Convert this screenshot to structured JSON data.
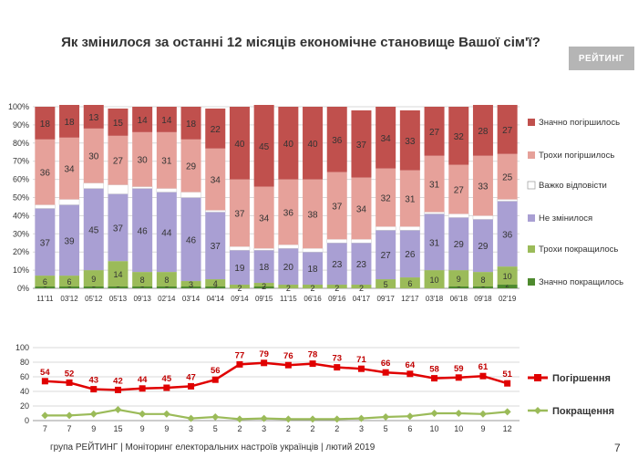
{
  "title": "Як змінилося за останні 12 місяців економічне становище Вашої сім'ї?",
  "logo_text": "РЕЙТИНГ",
  "footer": "група РЕЙТИНГ |  Моніторинг електоральних настроїв українців | лютий 2019",
  "page_number": "7",
  "chart_data": [
    {
      "type": "bar",
      "stacked": true,
      "categories": [
        "11'11",
        "03'12",
        "05'12",
        "05'13",
        "09'13",
        "02'14",
        "03'14",
        "04'14",
        "09'14",
        "09'15",
        "11'15",
        "06'16",
        "09'16",
        "04'17",
        "09'17",
        "12'17",
        "03'18",
        "06'18",
        "09'18",
        "02'19"
      ],
      "y_tick_labels": [
        "0%",
        "10%",
        "20%",
        "30%",
        "40%",
        "50%",
        "60%",
        "70%",
        "80%",
        "90%",
        "100%"
      ],
      "ylim": [
        0,
        100
      ],
      "grid": true,
      "legend_position": "right",
      "series": [
        {
          "name": "Значно покращилось",
          "color": "#4e8a2e",
          "values": [
            1,
            1,
            1,
            1,
            1,
            1,
            1,
            1,
            0,
            1,
            0,
            0,
            0,
            0,
            0,
            0,
            0,
            1,
            1,
            2
          ]
        },
        {
          "name": "Трохи покращилось",
          "color": "#9bbb59",
          "values": [
            6,
            6,
            9,
            14,
            8,
            8,
            3,
            4,
            2,
            2,
            2,
            2,
            2,
            2,
            5,
            6,
            10,
            9,
            8,
            10
          ]
        },
        {
          "name": "Не змінилося",
          "color": "#a99fd3",
          "values": [
            37,
            39,
            45,
            37,
            46,
            44,
            46,
            37,
            19,
            18,
            20,
            18,
            23,
            23,
            27,
            26,
            31,
            29,
            29,
            36
          ]
        },
        {
          "name": "Важко відповісти",
          "color": "#ffffff",
          "values": [
            2,
            3,
            3,
            5,
            1,
            2,
            3,
            1,
            2,
            1,
            2,
            2,
            2,
            2,
            2,
            2,
            1,
            2,
            2,
            1
          ]
        },
        {
          "name": "Трохи погіршилось",
          "color": "#e6a19a",
          "values": [
            36,
            34,
            30,
            27,
            30,
            31,
            29,
            34,
            37,
            34,
            36,
            38,
            37,
            34,
            32,
            31,
            31,
            27,
            33,
            25
          ]
        },
        {
          "name": "Значно погіршилось",
          "color": "#c0504d",
          "values": [
            18,
            18,
            13,
            15,
            14,
            14,
            18,
            22,
            40,
            45,
            40,
            40,
            36,
            37,
            34,
            33,
            27,
            32,
            28,
            27
          ]
        }
      ]
    },
    {
      "type": "line",
      "x": [
        "11'11",
        "03'12",
        "05'12",
        "05'13",
        "09'13",
        "02'14",
        "03'14",
        "04'14",
        "09'14",
        "09'15",
        "11'15",
        "06'16",
        "09'16",
        "04'17",
        "09'17",
        "12'17",
        "03'18",
        "06'18",
        "09'18",
        "02'19"
      ],
      "y_tick_labels": [
        "0",
        "20",
        "40",
        "60",
        "80",
        "100"
      ],
      "ylim": [
        0,
        100
      ],
      "grid": true,
      "legend_position": "right",
      "series": [
        {
          "name": "Погіршення",
          "color": "#e00000",
          "values": [
            54,
            52,
            43,
            42,
            44,
            45,
            47,
            56,
            77,
            79,
            76,
            78,
            73,
            71,
            66,
            64,
            58,
            59,
            61,
            51
          ]
        },
        {
          "name": "Покращення",
          "color": "#9bbb59",
          "values": [
            7,
            7,
            9,
            15,
            9,
            9,
            3,
            5,
            2,
            3,
            2,
            2,
            2,
            3,
            5,
            6,
            10,
            10,
            9,
            12
          ]
        }
      ]
    }
  ]
}
